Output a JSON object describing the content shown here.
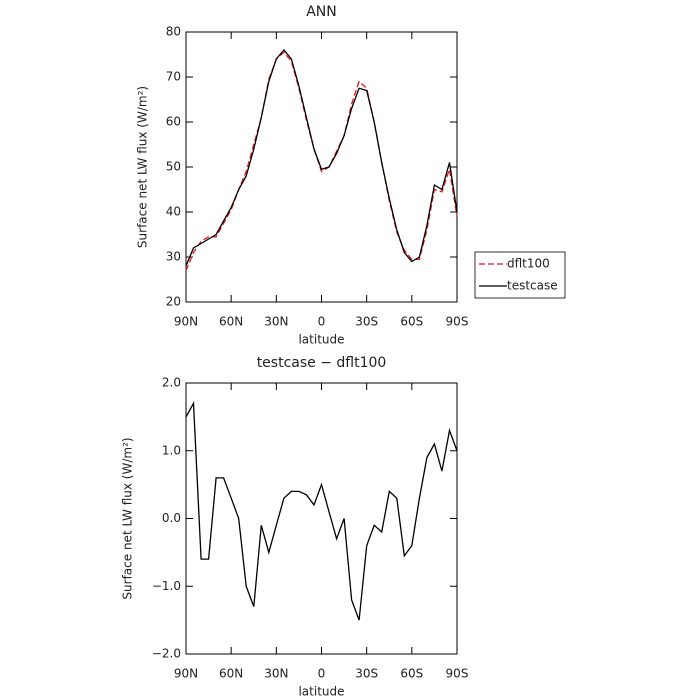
{
  "chart_data": [
    {
      "type": "line",
      "title": "ANN",
      "xlabel": "latitude",
      "ylabel": "Surface net LW flux (W/m²)",
      "x": [
        90,
        85,
        80,
        75,
        70,
        65,
        60,
        55,
        50,
        45,
        40,
        35,
        30,
        25,
        20,
        15,
        10,
        5,
        0,
        -5,
        -10,
        -15,
        -20,
        -25,
        -30,
        -35,
        -40,
        -45,
        -50,
        -55,
        -60,
        -65,
        -70,
        -75,
        -80,
        -85,
        -90
      ],
      "series": [
        {
          "name": "dflt100",
          "color": "#e8141c",
          "line_style": "dashed",
          "values": [
            27,
            31,
            33.5,
            34.5,
            34.5,
            37.5,
            40.5,
            45,
            49,
            55,
            61,
            69.5,
            74,
            75.5,
            73.5,
            67.5,
            60.5,
            54,
            49,
            50,
            53.5,
            57,
            64,
            69,
            67.5,
            60,
            51,
            42.5,
            35.5,
            31.5,
            29.5,
            29.5,
            36,
            45,
            44.5,
            49.5,
            39
          ]
        },
        {
          "name": "testcase",
          "color": "#000000",
          "line_style": "solid",
          "values": [
            28,
            32,
            33,
            34,
            35,
            38,
            41,
            45,
            48,
            54,
            61,
            69,
            74,
            76,
            74,
            68,
            61,
            54,
            49.5,
            50,
            53,
            57,
            63,
            67.5,
            67,
            60,
            51,
            43,
            36,
            31,
            29,
            30,
            37,
            46,
            45,
            51,
            40
          ]
        }
      ],
      "xlim": [
        90,
        -90
      ],
      "xticks": [
        {
          "value": 90,
          "label": "90N"
        },
        {
          "value": 60,
          "label": "60N"
        },
        {
          "value": 30,
          "label": "30N"
        },
        0,
        {
          "value": -30,
          "label": "30S"
        },
        {
          "value": -60,
          "label": "60S"
        },
        {
          "value": -90,
          "label": "90S"
        }
      ],
      "ylim": [
        20,
        80
      ],
      "yticks": [
        20,
        30,
        40,
        50,
        60,
        70,
        80
      ],
      "legend": "right"
    },
    {
      "type": "line",
      "title": "testcase − dflt100",
      "xlabel": "latitude",
      "ylabel": "Surface net LW flux (W/m²)",
      "x": [
        90,
        85,
        80,
        75,
        70,
        65,
        60,
        55,
        50,
        45,
        40,
        35,
        30,
        25,
        20,
        15,
        10,
        5,
        0,
        -5,
        -10,
        -15,
        -20,
        -25,
        -30,
        -35,
        -40,
        -45,
        -50,
        -55,
        -60,
        -65,
        -70,
        -75,
        -80,
        -85,
        -90
      ],
      "series": [
        {
          "color": "#000000",
          "line_style": "solid",
          "values": [
            1.5,
            1.7,
            -0.6,
            -0.6,
            0.6,
            0.6,
            0.3,
            0.0,
            -1.0,
            -1.3,
            -0.1,
            -0.5,
            -0.1,
            0.3,
            0.4,
            0.4,
            0.35,
            0.2,
            0.5,
            0.1,
            -0.3,
            0.0,
            -1.2,
            -1.5,
            -0.4,
            -0.1,
            -0.2,
            0.4,
            0.3,
            -0.55,
            -0.4,
            0.3,
            0.9,
            1.1,
            0.7,
            1.3,
            1.0
          ]
        }
      ],
      "xlim": [
        90,
        -90
      ],
      "xticks": [
        {
          "value": 90,
          "label": "90N"
        },
        {
          "value": 60,
          "label": "60N"
        },
        {
          "value": 30,
          "label": "30N"
        },
        0,
        {
          "value": -30,
          "label": "30S"
        },
        {
          "value": -60,
          "label": "60S"
        },
        {
          "value": -90,
          "label": "90S"
        }
      ],
      "ylim": [
        -2,
        2
      ],
      "yticks": [
        {
          "value": -2,
          "label": "−2.0"
        },
        {
          "value": -1,
          "label": "−1.0"
        },
        {
          "value": 0,
          "label": "0.0"
        },
        {
          "value": 1,
          "label": "1.0"
        },
        {
          "value": 2,
          "label": "2.0"
        }
      ]
    }
  ]
}
